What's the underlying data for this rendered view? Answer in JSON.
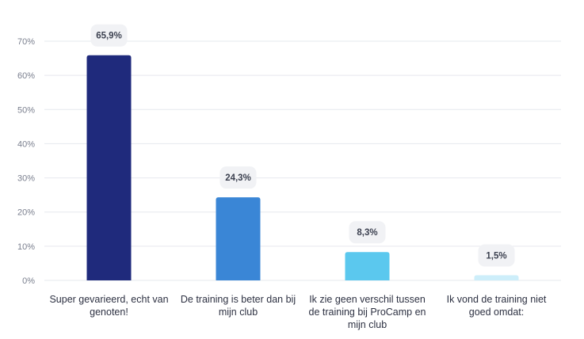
{
  "chart_data": {
    "type": "bar",
    "categories": [
      [
        "Super gevarieerd, echt van",
        "genoten!"
      ],
      [
        "De training is beter dan bij",
        "mijn club"
      ],
      [
        "Ik zie geen verschil tussen",
        "de training bij ProCamp en",
        "mijn club"
      ],
      [
        "Ik vond de training niet",
        "goed omdat:"
      ]
    ],
    "values": [
      65.9,
      24.3,
      8.3,
      1.5
    ],
    "data_labels": [
      "65,9%",
      "24,3%",
      "8,3%",
      "1,5%"
    ],
    "bar_colors": [
      "#1f2a7c",
      "#3a86d6",
      "#5bc8ee",
      "#cdeefa"
    ],
    "yticks": [
      {
        "value": 0,
        "label": "0%"
      },
      {
        "value": 10,
        "label": "10%"
      },
      {
        "value": 20,
        "label": "20%"
      },
      {
        "value": 30,
        "label": "30%"
      },
      {
        "value": 40,
        "label": "40%"
      },
      {
        "value": 50,
        "label": "50%"
      },
      {
        "value": 60,
        "label": "60%"
      },
      {
        "value": 70,
        "label": "70%"
      }
    ],
    "ylim": [
      0,
      70
    ],
    "grid": true,
    "legend": "none"
  }
}
